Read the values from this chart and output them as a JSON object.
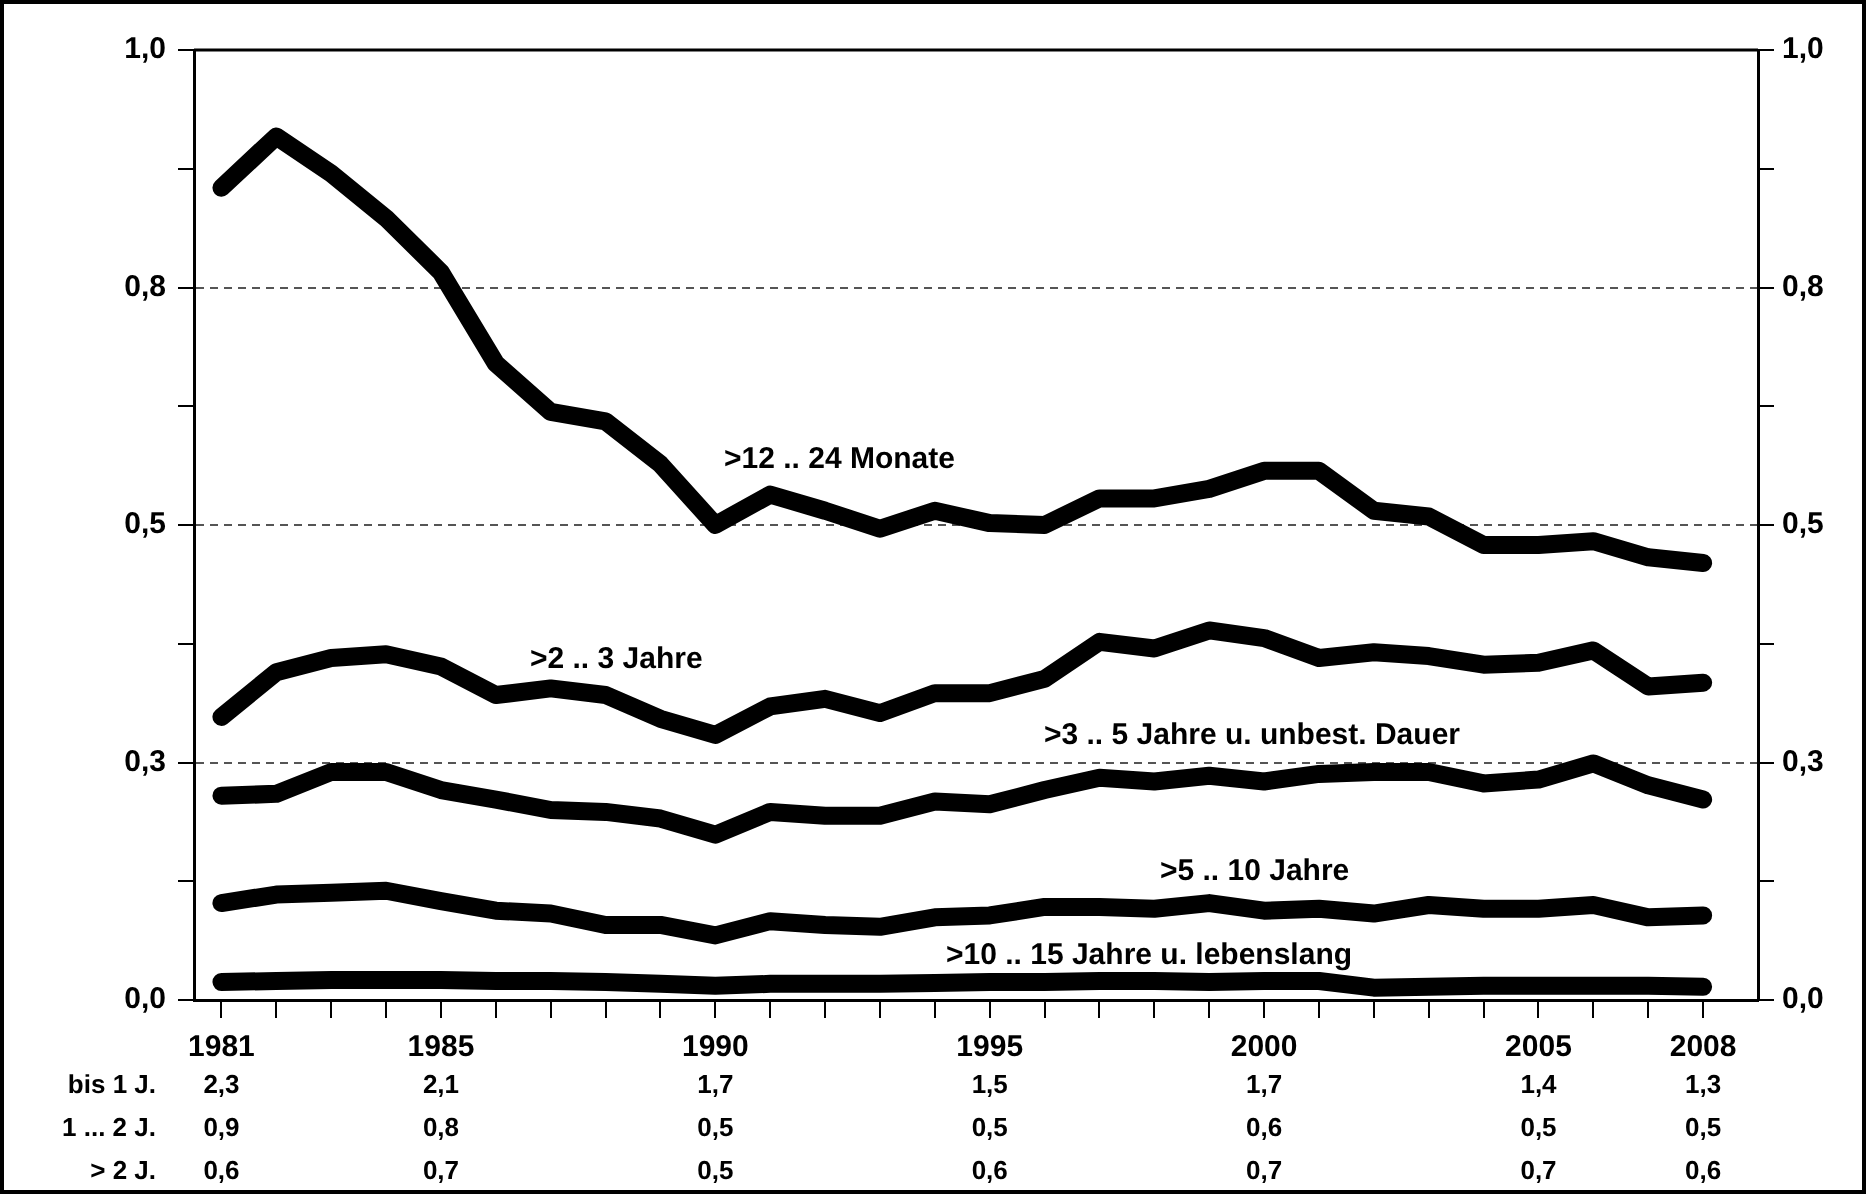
{
  "chart_data": {
    "type": "line",
    "x": [
      1981,
      1982,
      1983,
      1984,
      1985,
      1986,
      1987,
      1988,
      1989,
      1990,
      1991,
      1992,
      1993,
      1994,
      1995,
      1996,
      1997,
      1998,
      1999,
      2000,
      2001,
      2002,
      2003,
      2004,
      2005,
      2006,
      2007,
      2008
    ],
    "xlim": [
      1980.5,
      2009
    ],
    "xticks": [
      1981,
      {
        "value": 1982,
        "label": null
      },
      {
        "value": 1983,
        "label": null
      },
      {
        "value": 1984,
        "label": null
      },
      1985,
      {
        "value": 1986,
        "label": null
      },
      {
        "value": 1987,
        "label": null
      },
      {
        "value": 1988,
        "label": null
      },
      {
        "value": 1989,
        "label": null
      },
      1990,
      {
        "value": 1991,
        "label": null
      },
      {
        "value": 1992,
        "label": null
      },
      {
        "value": 1993,
        "label": null
      },
      {
        "value": 1994,
        "label": null
      },
      1995,
      {
        "value": 1996,
        "label": null
      },
      {
        "value": 1997,
        "label": null
      },
      {
        "value": 1998,
        "label": null
      },
      {
        "value": 1999,
        "label": null
      },
      2000,
      {
        "value": 2001,
        "label": null
      },
      {
        "value": 2002,
        "label": null
      },
      {
        "value": 2003,
        "label": null
      },
      {
        "value": 2004,
        "label": null
      },
      2005,
      {
        "value": 2006,
        "label": null
      },
      {
        "value": 2007,
        "label": null
      },
      2008
    ],
    "ylim": [
      0,
      1
    ],
    "yticks": [
      {
        "value": 0,
        "label": "0,0"
      },
      {
        "value": 0.125,
        "label": null
      },
      {
        "value": 0.25,
        "label": "0,3"
      },
      {
        "value": 0.375,
        "label": null
      },
      {
        "value": 0.5,
        "label": "0,5"
      },
      {
        "value": 0.625,
        "label": null
      },
      {
        "value": 0.75,
        "label": "0,8"
      },
      {
        "value": 0.875,
        "label": null
      },
      {
        "value": 1,
        "label": "1,0"
      }
    ],
    "y2lim": [
      0,
      1
    ],
    "y2ticks": [
      {
        "value": 0,
        "label": "0,0"
      },
      {
        "value": 0.125,
        "label": null
      },
      {
        "value": 0.25,
        "label": "0,3"
      },
      {
        "value": 0.375,
        "label": null
      },
      {
        "value": 0.5,
        "label": "0,5"
      },
      {
        "value": 0.625,
        "label": null
      },
      {
        "value": 0.75,
        "label": "0,8"
      },
      {
        "value": 0.875,
        "label": null
      },
      {
        "value": 1,
        "label": "1,0"
      }
    ],
    "grid": "y",
    "legend": false,
    "marker": "none",
    "line_style": "solid",
    "series": [
      {
        "name": ">12 .. 24 Monate",
        "color": "#000000",
        "values": [
          0.855,
          0.909,
          0.87,
          0.823,
          0.766,
          0.67,
          0.619,
          0.609,
          0.564,
          0.5,
          0.532,
          0.515,
          0.496,
          0.515,
          0.502,
          0.5,
          0.528,
          0.528,
          0.538,
          0.557,
          0.557,
          0.515,
          0.509,
          0.479,
          0.479,
          0.483,
          0.466,
          0.46
        ]
      },
      {
        "name": ">2 .. 3 Jahre",
        "color": "#000000",
        "values": [
          0.298,
          0.345,
          0.36,
          0.364,
          0.351,
          0.321,
          0.328,
          0.321,
          0.296,
          0.279,
          0.309,
          0.317,
          0.302,
          0.323,
          0.323,
          0.338,
          0.377,
          0.37,
          0.389,
          0.381,
          0.36,
          0.366,
          0.362,
          0.353,
          0.355,
          0.368,
          0.33,
          0.334
        ]
      },
      {
        "name": ">3 .. 5 Jahre u. unbest. Dauer",
        "color": "#000000",
        "values": [
          0.215,
          0.217,
          0.24,
          0.24,
          0.221,
          0.211,
          0.2,
          0.198,
          0.191,
          0.174,
          0.198,
          0.194,
          0.194,
          0.209,
          0.206,
          0.221,
          0.234,
          0.23,
          0.236,
          0.23,
          0.238,
          0.24,
          0.24,
          0.228,
          0.232,
          0.249,
          0.226,
          0.211
        ]
      },
      {
        "name": ">5 .. 10 Jahre",
        "color": "#000000",
        "values": [
          0.102,
          0.111,
          0.113,
          0.115,
          0.104,
          0.094,
          0.091,
          0.079,
          0.079,
          0.068,
          0.083,
          0.079,
          0.077,
          0.087,
          0.089,
          0.098,
          0.098,
          0.096,
          0.102,
          0.094,
          0.096,
          0.091,
          0.1,
          0.096,
          0.096,
          0.1,
          0.087,
          0.089
        ]
      },
      {
        "name": ">10 .. 15 Jahre u. lebenslang",
        "color": "#000000",
        "values": [
          0.019,
          0.02,
          0.021,
          0.021,
          0.021,
          0.02,
          0.02,
          0.019,
          0.017,
          0.015,
          0.017,
          0.017,
          0.017,
          0.018,
          0.019,
          0.019,
          0.02,
          0.02,
          0.019,
          0.02,
          0.02,
          0.013,
          0.014,
          0.015,
          0.015,
          0.015,
          0.015,
          0.014
        ]
      }
    ],
    "annotations": [
      "bis 1 J.",
      "2,3",
      "2,1",
      "1,7",
      "1,5",
      "1,7",
      "1,4",
      "1,3",
      "1 ... 2 J.",
      "0,9",
      "0,8",
      "0,5",
      "0,5",
      "0,6",
      "0,5",
      "0,5",
      "> 2 J.",
      "0,6",
      "0,7",
      "0,5",
      "0,6",
      "0,7",
      "0,7",
      "0,6"
    ]
  }
}
